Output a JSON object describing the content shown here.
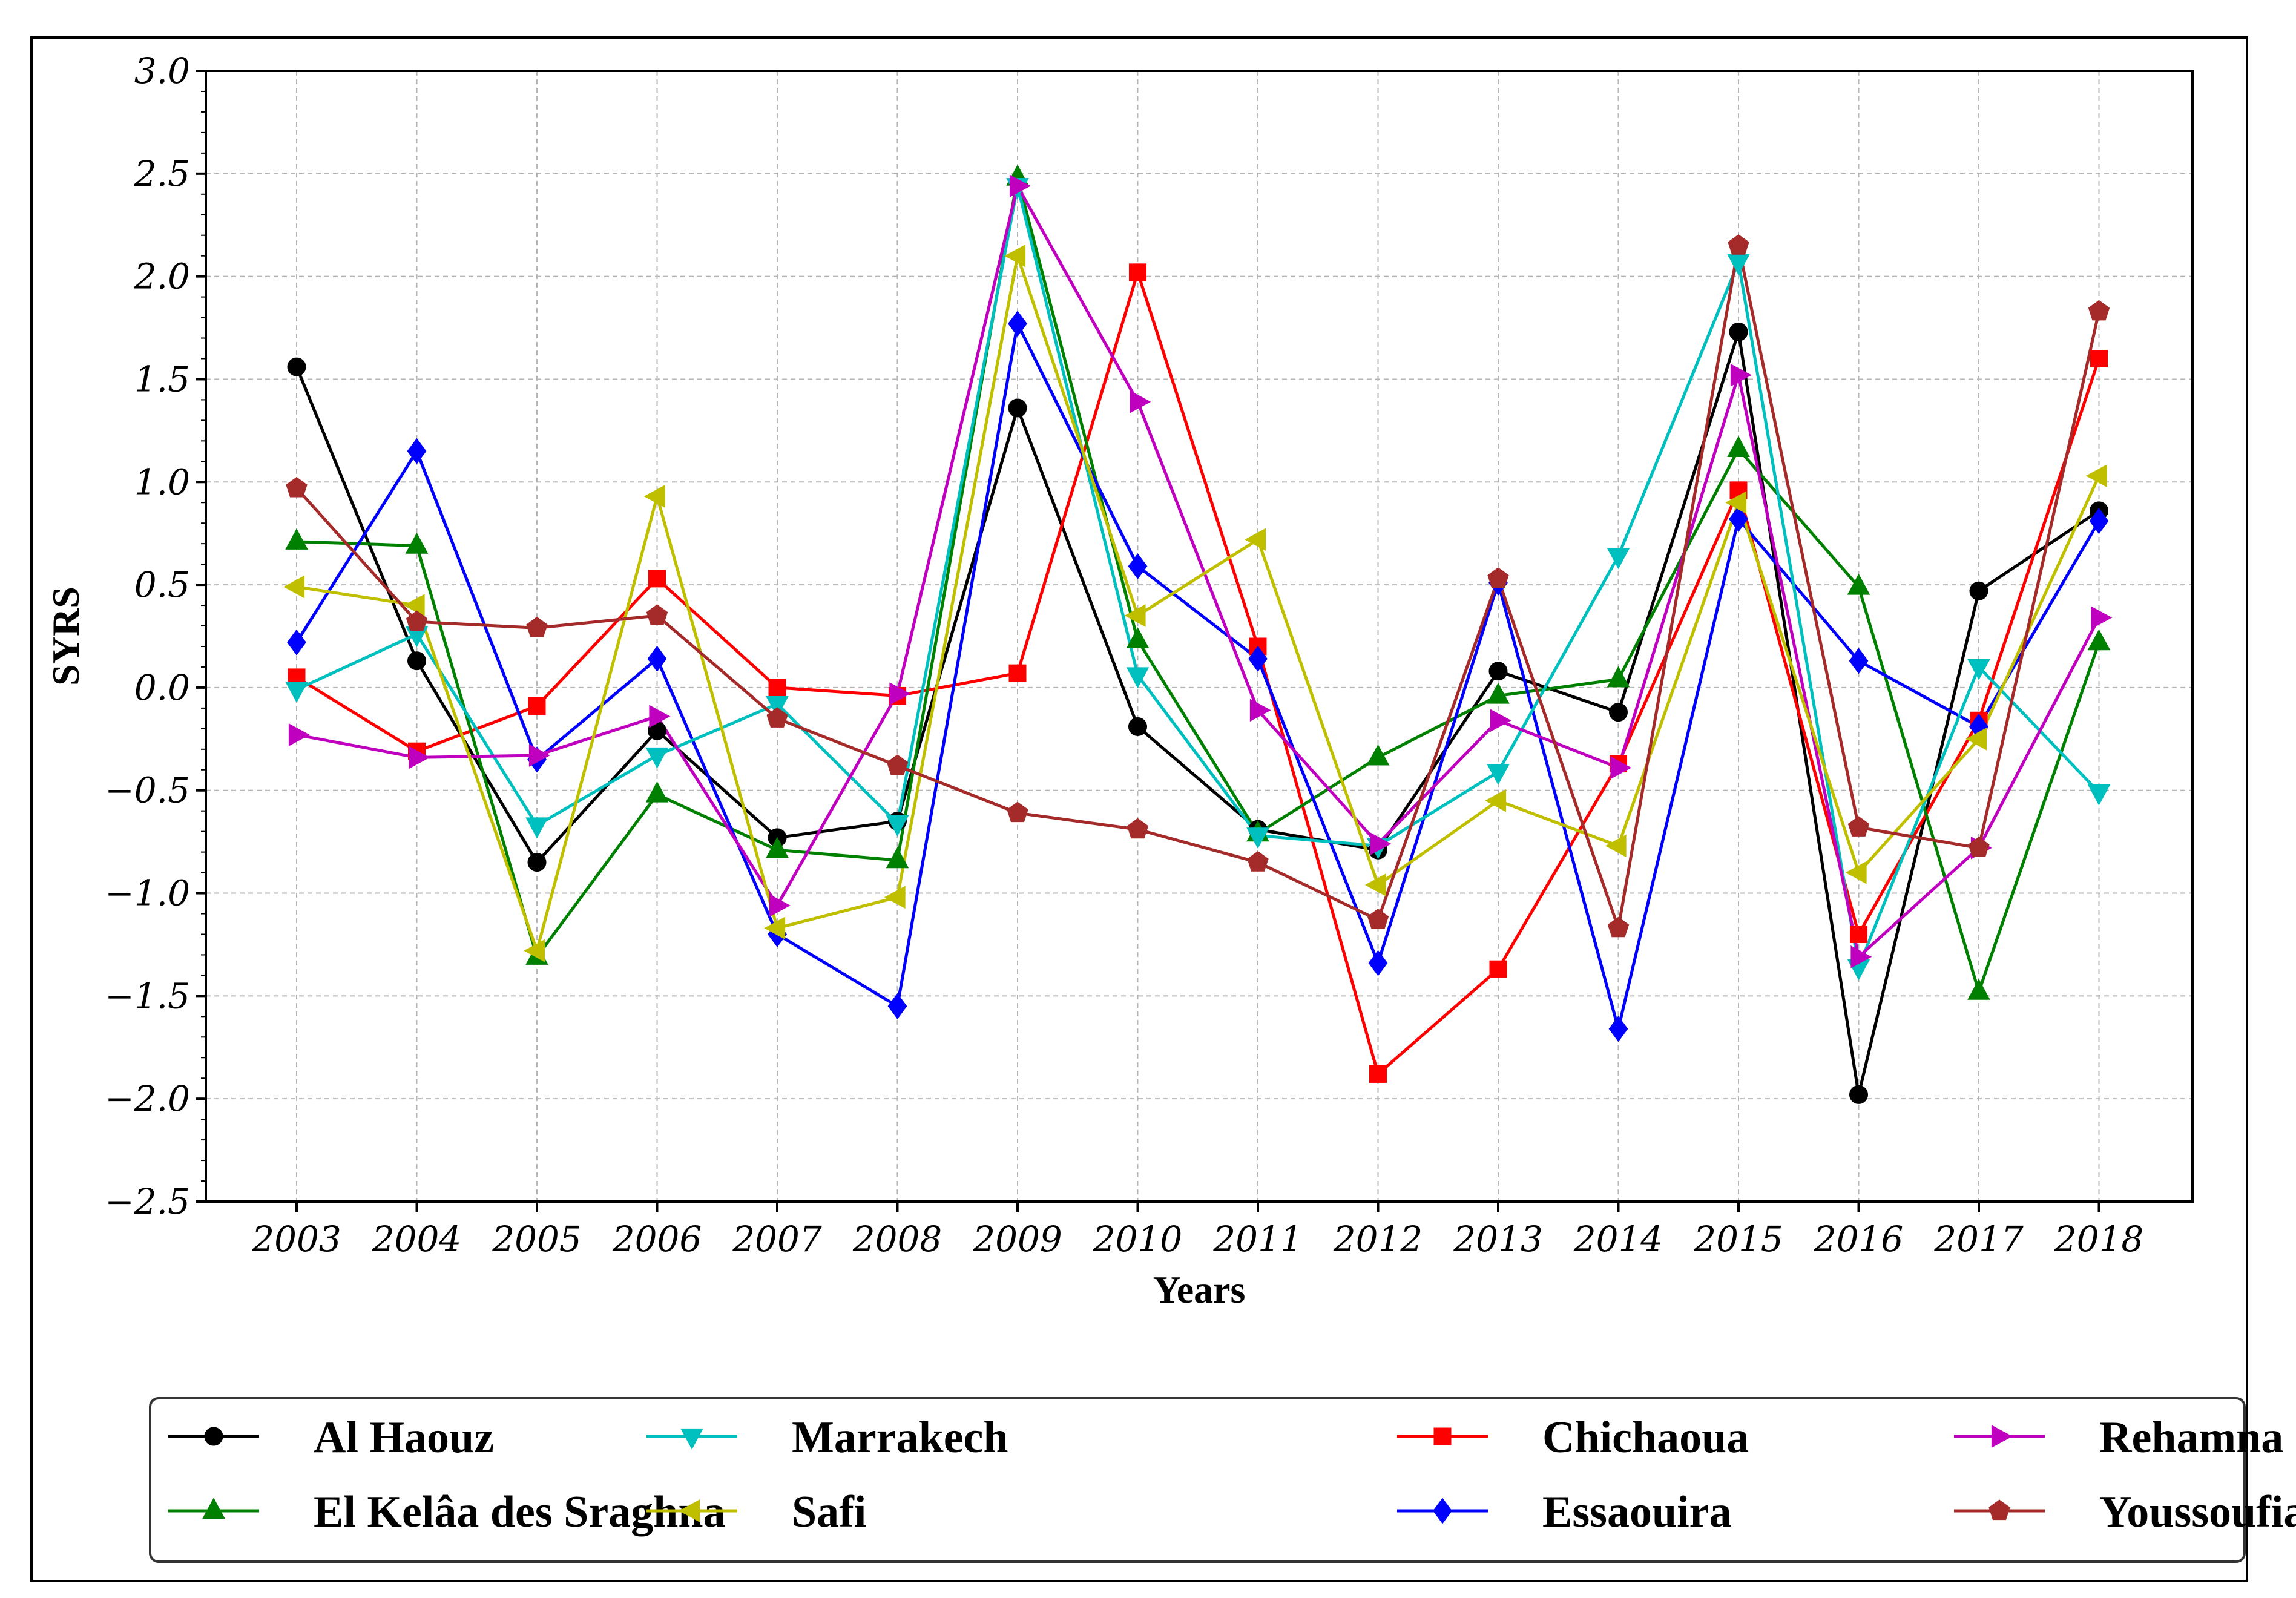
{
  "chart_data": {
    "type": "line",
    "title": "",
    "xlabel": "Years",
    "ylabel": "SYRS",
    "categories": [
      "2003",
      "2004",
      "2005",
      "2006",
      "2007",
      "2008",
      "2009",
      "2010",
      "2011",
      "2012",
      "2013",
      "2014",
      "2015",
      "2016",
      "2017",
      "2018"
    ],
    "ylim": [
      -2.5,
      3.0
    ],
    "yticks": [
      -2.5,
      -2.0,
      -1.5,
      -1.0,
      -0.5,
      0.0,
      0.5,
      1.0,
      1.5,
      2.0,
      2.5,
      3.0
    ],
    "ytick_labels": [
      "−2.5",
      "−2.0",
      "−1.5",
      "−1.0",
      "−0.5",
      "0.0",
      "0.5",
      "1.0",
      "1.5",
      "2.0",
      "2.5",
      "3.0"
    ],
    "grid": true,
    "legend_position": "bottom",
    "series": [
      {
        "name": "Al Haouz",
        "color": "#000000",
        "marker": "circle",
        "values": [
          1.56,
          0.13,
          -0.85,
          -0.21,
          -0.73,
          -0.65,
          1.36,
          -0.19,
          -0.69,
          -0.79,
          0.08,
          -0.12,
          1.73,
          -1.98,
          0.47,
          0.86
        ]
      },
      {
        "name": "Chichaoua",
        "color": "#ff0000",
        "marker": "square",
        "values": [
          0.05,
          -0.31,
          -0.09,
          0.53,
          0.0,
          -0.04,
          0.07,
          2.02,
          0.2,
          -1.88,
          -1.37,
          -0.37,
          0.96,
          -1.2,
          -0.16,
          1.6
        ]
      },
      {
        "name": "El Kelâa des Sraghna",
        "color": "#008000",
        "marker": "triangle-up",
        "values": [
          0.71,
          0.69,
          -1.31,
          -0.52,
          -0.79,
          -0.84,
          2.48,
          0.23,
          -0.71,
          -0.34,
          -0.04,
          0.04,
          1.16,
          0.49,
          -1.48,
          0.22
        ]
      },
      {
        "name": "Essaouira",
        "color": "#0000ff",
        "marker": "diamond",
        "values": [
          0.22,
          1.15,
          -0.35,
          0.14,
          -1.2,
          -1.55,
          1.77,
          0.59,
          0.14,
          -1.34,
          0.51,
          -1.66,
          0.82,
          0.13,
          -0.19,
          0.81
        ]
      },
      {
        "name": "Marrakech",
        "color": "#00bfbf",
        "marker": "triangle-down",
        "values": [
          -0.01,
          0.26,
          -0.67,
          -0.33,
          -0.08,
          -0.66,
          2.44,
          0.06,
          -0.72,
          -0.77,
          -0.41,
          0.64,
          2.07,
          -1.36,
          0.1,
          -0.51
        ]
      },
      {
        "name": "Rehamna",
        "color": "#bf00bf",
        "marker": "triangle-right",
        "values": [
          -0.23,
          -0.34,
          -0.33,
          -0.14,
          -1.06,
          -0.03,
          2.44,
          1.39,
          -0.11,
          -0.76,
          -0.16,
          -0.39,
          1.52,
          -1.31,
          -0.78,
          0.34
        ]
      },
      {
        "name": "Safi",
        "color": "#bfbf00",
        "marker": "triangle-left",
        "values": [
          0.49,
          0.4,
          -1.28,
          0.93,
          -1.17,
          -1.02,
          2.1,
          0.35,
          0.72,
          -0.96,
          -0.55,
          -0.77,
          0.9,
          -0.9,
          -0.25,
          1.03
        ]
      },
      {
        "name": "Youssoufia",
        "color": "#a52a2a",
        "marker": "pentagon",
        "values": [
          0.97,
          0.32,
          0.29,
          0.35,
          -0.15,
          -0.38,
          -0.61,
          -0.69,
          -0.85,
          -1.13,
          0.53,
          -1.17,
          2.15,
          -0.68,
          -0.78,
          1.83
        ]
      }
    ],
    "legend_order": [
      0,
      2,
      4,
      6,
      1,
      3,
      5,
      7
    ]
  }
}
